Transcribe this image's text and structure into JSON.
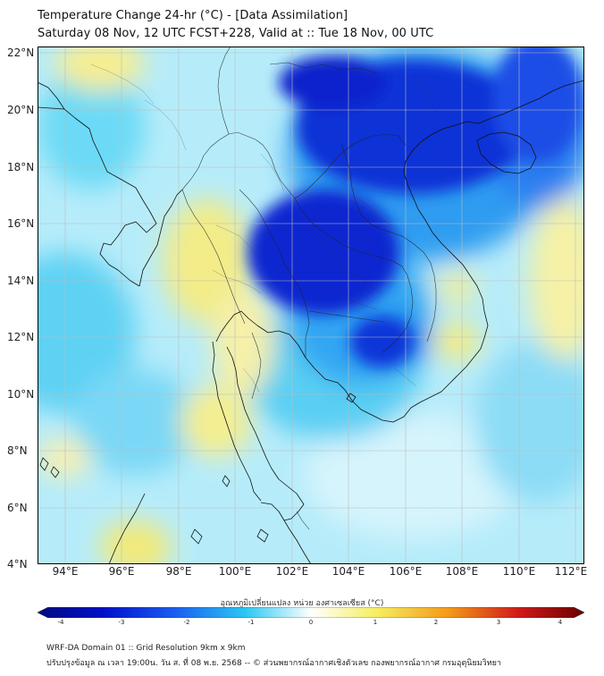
{
  "title": {
    "line1": "Temperature Change 24-hr (°C) - [Data Assimilation]",
    "line2": "Saturday 08 Nov, 12 UTC FCST+228, Valid at :: Tue 18 Nov, 00 UTC"
  },
  "map": {
    "lat_labels": [
      "22°N",
      "20°N",
      "18°N",
      "16°N",
      "14°N",
      "12°N",
      "10°N",
      "8°N",
      "6°N",
      "4°N"
    ],
    "lon_labels": [
      "94°E",
      "96°E",
      "98°E",
      "100°E",
      "102°E",
      "104°E",
      "106°E",
      "108°E",
      "110°E",
      "112°E"
    ],
    "lat_range": [
      4,
      22.2
    ],
    "lon_range": [
      93,
      112.3
    ]
  },
  "colorbar": {
    "label": "อุณหภูมิเปลี่ยนแปลง หน่วย องศาเซลเซียส (°C)",
    "ticks": [
      "-4",
      "-3",
      "-2",
      "-1",
      "0",
      "1",
      "2",
      "3",
      "4"
    ],
    "min": -4,
    "max": 4,
    "colors": {
      "deep_blue": "#0010c8",
      "blue": "#1b5cf0",
      "light_blue": "#2ac8f2",
      "pale": "#ffffff",
      "yellow": "#f6ee60",
      "orange": "#f49a18",
      "red": "#d01a1a",
      "dark_red": "#6a0000"
    }
  },
  "footer": {
    "line1": "WRF-DA Domain 01 :: Grid Resolution 9km x 9km",
    "line2": "ปรับปรุงข้อมูล ณ เวลา 19:00น. วัน ส. ที่ 08 พ.ย. 2568 -- © ส่วนพยากรณ์อากาศเชิงตัวเลข กองพยากรณ์อากาศ กรมอุตุนิยมวิทยา"
  }
}
